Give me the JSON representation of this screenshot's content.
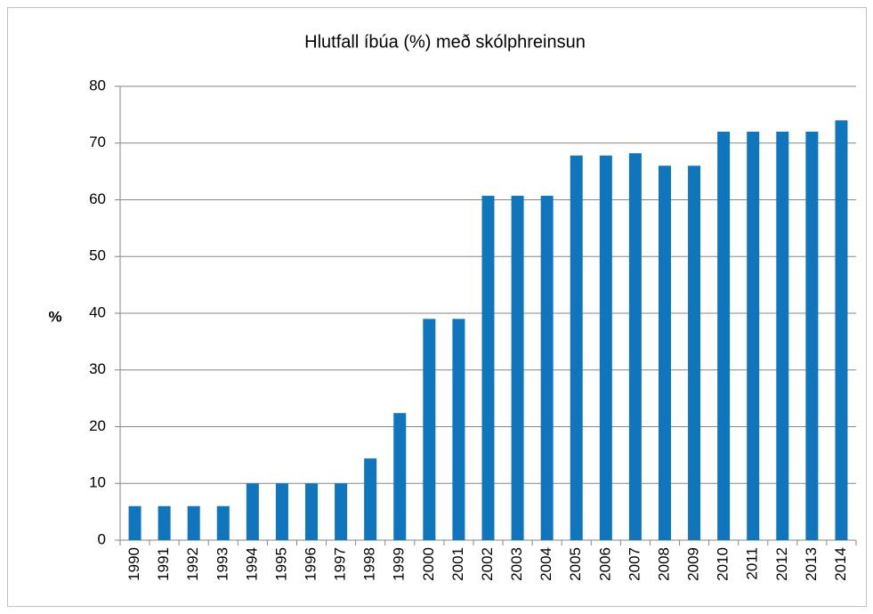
{
  "chart_data": {
    "type": "bar",
    "title": "Hlutfall íbúa (%) með skólphreinsun",
    "y_label": "%",
    "categories": [
      "1990",
      "1991",
      "1992",
      "1993",
      "1994",
      "1995",
      "1996",
      "1997",
      "1998",
      "1999",
      "2000",
      "2001",
      "2002",
      "2003",
      "2004",
      "2005",
      "2006",
      "2007",
      "2008",
      "2009",
      "2010",
      "2011",
      "2012",
      "2013",
      "2014"
    ],
    "values": [
      6,
      6,
      6,
      6,
      10,
      10,
      10,
      10,
      14.4,
      22.4,
      39,
      39,
      60.7,
      60.7,
      60.7,
      67.8,
      67.8,
      68.2,
      66,
      66,
      72,
      72,
      72,
      72,
      74
    ],
    "color": "#0f75bc",
    "ylim": [
      0,
      80
    ],
    "yticks": [
      0,
      10,
      20,
      30,
      40,
      50,
      60,
      70,
      80
    ],
    "grid": true
  }
}
